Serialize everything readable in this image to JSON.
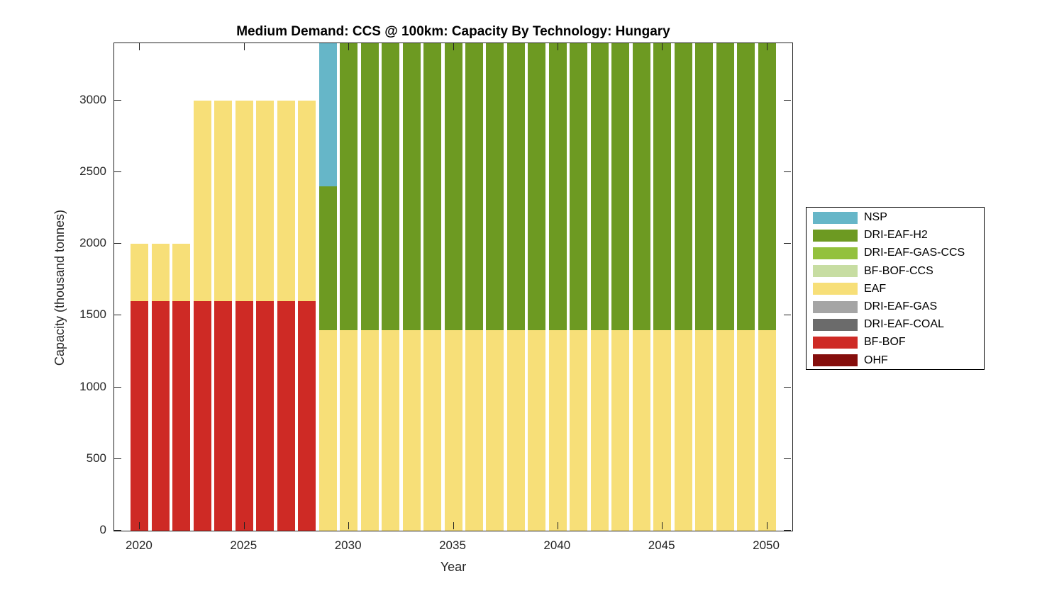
{
  "chart": {
    "title": "Medium Demand: CCS @ 100km: Capacity By Technology: Hungary",
    "xlabel": "Year",
    "ylabel": "Capacity (thousand tonnes)"
  },
  "chart_data": {
    "type": "bar",
    "stacked": true,
    "grid": false,
    "legend_position": "right-outside",
    "title": "Medium Demand: CCS @ 100km: Capacity By Technology: Hungary",
    "xlabel": "Year",
    "ylabel": "Capacity (thousand tonnes)",
    "xlim": [
      2018.78,
      2051.22
    ],
    "ylim": [
      0,
      3400
    ],
    "xticks": [
      2020,
      2025,
      2030,
      2035,
      2040,
      2045,
      2050
    ],
    "yticks": [
      0,
      500,
      1000,
      1500,
      2000,
      2500,
      3000
    ],
    "x": [
      2020,
      2021,
      2022,
      2023,
      2024,
      2025,
      2026,
      2027,
      2028,
      2029,
      2030,
      2031,
      2032,
      2033,
      2034,
      2035,
      2036,
      2037,
      2038,
      2039,
      2040,
      2041,
      2042,
      2043,
      2044,
      2045,
      2046,
      2047,
      2048,
      2049,
      2050
    ],
    "series": [
      {
        "name": "NSP",
        "color": "#66B6C8",
        "values": [
          0,
          0,
          0,
          0,
          0,
          0,
          0,
          0,
          0,
          1000,
          0,
          0,
          0,
          0,
          0,
          0,
          0,
          0,
          0,
          0,
          0,
          0,
          0,
          0,
          0,
          0,
          0,
          0,
          0,
          0,
          0
        ]
      },
      {
        "name": "DRI-EAF-H2",
        "color": "#6D9A22",
        "values": [
          0,
          0,
          0,
          0,
          0,
          0,
          0,
          0,
          0,
          1000,
          2000,
          2000,
          2000,
          2000,
          2000,
          2000,
          2000,
          2000,
          2000,
          2000,
          2000,
          2000,
          2000,
          2000,
          2000,
          2000,
          2000,
          2000,
          2000,
          2000,
          2000
        ]
      },
      {
        "name": "DRI-EAF-GAS-CCS",
        "color": "#93C13D",
        "values": [
          0,
          0,
          0,
          0,
          0,
          0,
          0,
          0,
          0,
          0,
          0,
          0,
          0,
          0,
          0,
          0,
          0,
          0,
          0,
          0,
          0,
          0,
          0,
          0,
          0,
          0,
          0,
          0,
          0,
          0,
          0
        ]
      },
      {
        "name": "BF-BOF-CCS",
        "color": "#C7DDA2",
        "values": [
          0,
          0,
          0,
          0,
          0,
          0,
          0,
          0,
          0,
          0,
          0,
          0,
          0,
          0,
          0,
          0,
          0,
          0,
          0,
          0,
          0,
          0,
          0,
          0,
          0,
          0,
          0,
          0,
          0,
          0,
          0
        ]
      },
      {
        "name": "EAF",
        "color": "#F7DF78",
        "values": [
          400,
          400,
          400,
          1400,
          1400,
          1400,
          1400,
          1400,
          1400,
          1400,
          1400,
          1400,
          1400,
          1400,
          1400,
          1400,
          1400,
          1400,
          1400,
          1400,
          1400,
          1400,
          1400,
          1400,
          1400,
          1400,
          1400,
          1400,
          1400,
          1400,
          1400
        ]
      },
      {
        "name": "DRI-EAF-GAS",
        "color": "#A5A5A5",
        "values": [
          0,
          0,
          0,
          0,
          0,
          0,
          0,
          0,
          0,
          0,
          0,
          0,
          0,
          0,
          0,
          0,
          0,
          0,
          0,
          0,
          0,
          0,
          0,
          0,
          0,
          0,
          0,
          0,
          0,
          0,
          0
        ]
      },
      {
        "name": "DRI-EAF-COAL",
        "color": "#6B6B6B",
        "values": [
          0,
          0,
          0,
          0,
          0,
          0,
          0,
          0,
          0,
          0,
          0,
          0,
          0,
          0,
          0,
          0,
          0,
          0,
          0,
          0,
          0,
          0,
          0,
          0,
          0,
          0,
          0,
          0,
          0,
          0,
          0
        ]
      },
      {
        "name": "BF-BOF",
        "color": "#CE2A25",
        "values": [
          1600,
          1600,
          1600,
          1600,
          1600,
          1600,
          1600,
          1600,
          1600,
          0,
          0,
          0,
          0,
          0,
          0,
          0,
          0,
          0,
          0,
          0,
          0,
          0,
          0,
          0,
          0,
          0,
          0,
          0,
          0,
          0,
          0
        ]
      },
      {
        "name": "OHF",
        "color": "#850E0C",
        "values": [
          0,
          0,
          0,
          0,
          0,
          0,
          0,
          0,
          0,
          0,
          0,
          0,
          0,
          0,
          0,
          0,
          0,
          0,
          0,
          0,
          0,
          0,
          0,
          0,
          0,
          0,
          0,
          0,
          0,
          0,
          0
        ]
      }
    ]
  }
}
